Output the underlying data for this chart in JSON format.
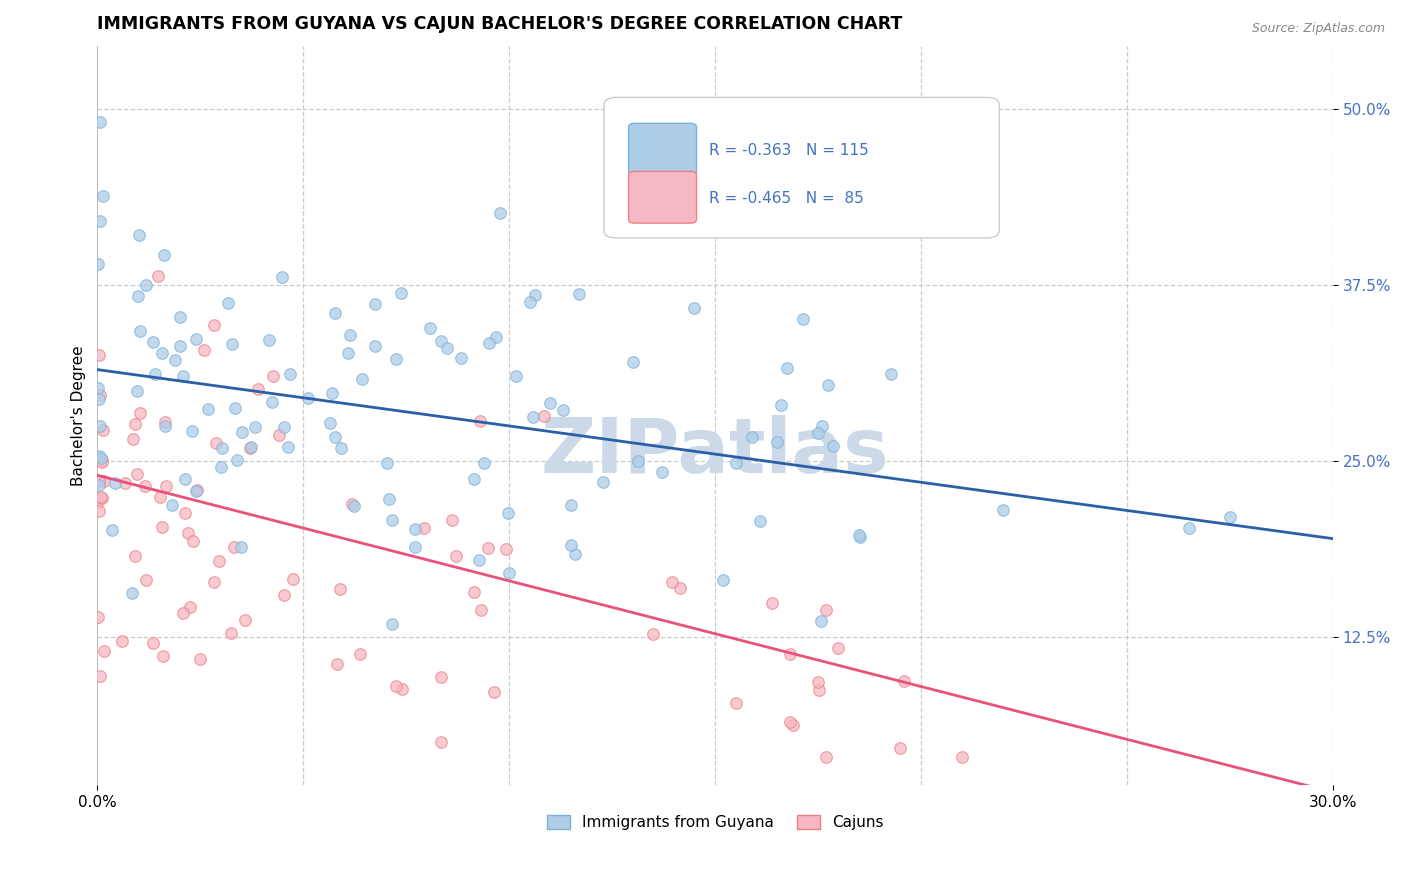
{
  "title": "IMMIGRANTS FROM GUYANA VS CAJUN BACHELOR'S DEGREE CORRELATION CHART",
  "source": "Source: ZipAtlas.com",
  "ylabel": "Bachelor's Degree",
  "ytick_labels": [
    "12.5%",
    "25.0%",
    "37.5%",
    "50.0%"
  ],
  "ytick_values": [
    0.125,
    0.25,
    0.375,
    0.5
  ],
  "xmin": 0.0,
  "xmax": 0.3,
  "ymin": 0.02,
  "ymax": 0.545,
  "blue_edge": "#7ab3d9",
  "blue_fill": "#aecde8",
  "pink_edge": "#f08080",
  "pink_fill": "#f5b8c4",
  "blue_line_color": "#2b5fa8",
  "pink_line_color": "#e8537a",
  "legend_color": "#4472c4",
  "legend_text_color": "#4472c4",
  "watermark": "ZIPatlas",
  "watermark_color": "#ccd9e8",
  "grid_color": "#cccccc",
  "background_color": "#ffffff",
  "title_fontsize": 12.5,
  "axis_label_fontsize": 11,
  "tick_fontsize": 11,
  "blue_N": 115,
  "pink_N": 85,
  "blue_intercept": 0.315,
  "blue_slope": -0.4,
  "pink_intercept": 0.24,
  "pink_slope": -0.75,
  "legend_R1": "-0.363",
  "legend_N1": "115",
  "legend_R2": "-0.465",
  "legend_N2": " 85"
}
